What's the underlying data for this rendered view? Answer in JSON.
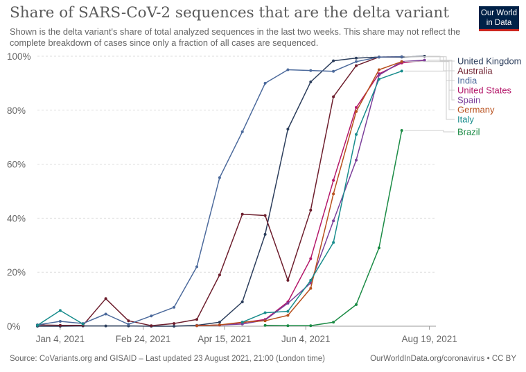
{
  "header": {
    "title": "Share of SARS-CoV-2 sequences that are the delta variant",
    "subtitle": "Shown is the delta variant's share of total analyzed sequences in the last two weeks. This share may not reflect the complete breakdown of cases since only a fraction of all cases are sequenced.",
    "logo_line1": "Our World",
    "logo_line2": "in Data"
  },
  "footer": {
    "source": "Source: CoVariants.org and GISAID – Last updated 23 August 2021, 21:00 (London time)",
    "url": "OurWorldInData.org/coronavirus • CC BY"
  },
  "colors": {
    "logo_background": "#002147",
    "logo_accent": "#ce261e"
  },
  "chart_data": {
    "type": "line",
    "title": "Share of SARS-CoV-2 sequences that are the delta variant",
    "ylim": [
      0,
      100
    ],
    "y_ticks": [
      0,
      20,
      40,
      60,
      80,
      100
    ],
    "y_tick_labels": [
      "0%",
      "20%",
      "40%",
      "60%",
      "80%",
      "100%"
    ],
    "x_tick_labels": [
      "Jan 4, 2021",
      "Feb 24, 2021",
      "Apr 15, 2021",
      "Jun 4, 2021",
      "Aug 19, 2021"
    ],
    "x_tick_dates": [
      "2021-01-04",
      "2021-02-24",
      "2021-04-15",
      "2021-06-04",
      "2021-08-19"
    ],
    "xlim": [
      "2020-12-21",
      "2021-08-23"
    ],
    "grid": true,
    "legend": "right",
    "x": [
      "2020-12-21",
      "2021-01-04",
      "2021-01-18",
      "2021-02-01",
      "2021-02-15",
      "2021-03-01",
      "2021-03-15",
      "2021-03-29",
      "2021-04-12",
      "2021-04-26",
      "2021-05-10",
      "2021-05-24",
      "2021-06-07",
      "2021-06-21",
      "2021-07-05",
      "2021-07-19",
      "2021-08-02",
      "2021-08-16"
    ],
    "series": [
      {
        "name": "United Kingdom",
        "color": "#2c3e5c",
        "values": [
          0,
          0,
          0.1,
          0.1,
          0.1,
          0,
          0,
          0.3,
          1.5,
          9,
          34,
          73,
          90.5,
          98.3,
          99.3,
          99.7,
          99.7,
          100
        ]
      },
      {
        "name": "Australia",
        "color": "#6d1e2d",
        "values": [
          0.5,
          0.3,
          0.3,
          10.2,
          2,
          0.2,
          1,
          2.5,
          19,
          41.5,
          41,
          17,
          43,
          85,
          96.5,
          99.7,
          99.8,
          null
        ]
      },
      {
        "name": "India",
        "color": "#4c6a9c",
        "values": [
          0.5,
          1.8,
          1,
          4.5,
          0.7,
          3.8,
          7,
          22,
          55,
          72,
          90,
          95,
          94.7,
          94.4,
          98,
          99.7,
          99.8,
          null
        ]
      },
      {
        "name": "United States",
        "color": "#b4186a",
        "values": [
          null,
          null,
          null,
          null,
          null,
          null,
          null,
          0.2,
          0.4,
          1.3,
          2.5,
          9,
          25,
          54,
          81,
          93.5,
          97.5,
          98.5
        ]
      },
      {
        "name": "Spain",
        "color": "#7b3f9a",
        "values": [
          null,
          null,
          null,
          null,
          null,
          null,
          null,
          0.2,
          0.4,
          0.8,
          2.3,
          8.5,
          16,
          39,
          61.5,
          93,
          98,
          98.5
        ]
      },
      {
        "name": "Germany",
        "color": "#b8501d",
        "values": [
          null,
          null,
          null,
          null,
          null,
          null,
          null,
          0.2,
          0.5,
          1.5,
          2,
          4,
          14,
          49,
          79.5,
          95,
          98,
          null
        ]
      },
      {
        "name": "Italy",
        "color": "#178c8c",
        "values": [
          0.3,
          5.8,
          0.8,
          null,
          null,
          null,
          null,
          null,
          null,
          1.5,
          5,
          5.5,
          17,
          31,
          71,
          91.5,
          94.5,
          null
        ]
      },
      {
        "name": "Brazil",
        "color": "#1b8b45",
        "values": [
          null,
          null,
          null,
          null,
          null,
          null,
          null,
          null,
          null,
          null,
          0.3,
          0.2,
          0.2,
          1.5,
          8,
          29,
          72.5,
          null
        ]
      }
    ]
  }
}
